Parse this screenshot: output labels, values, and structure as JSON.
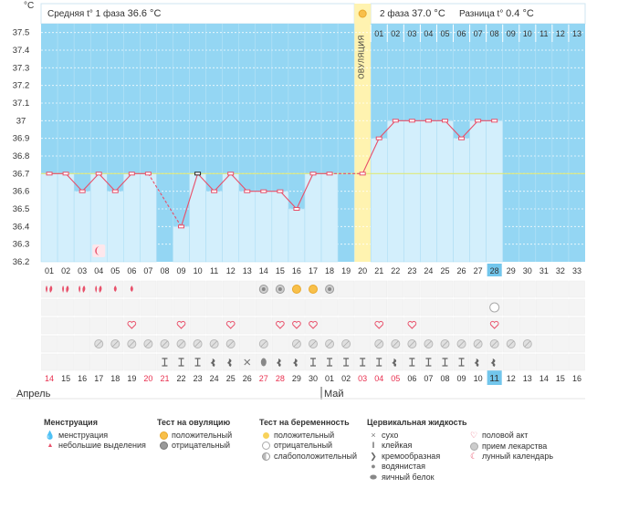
{
  "header": {
    "unit": "°C",
    "phase1_label": "Средняя t° 1 фаза",
    "phase1_value": "36.6 °C",
    "phase2_label": "2 фаза",
    "phase2_value": "37.0 °C",
    "diff_label": "Разница t°",
    "diff_value": "0.4 °C",
    "ovulation_label": "ОВУЛЯЦИЯ"
  },
  "chart_data": {
    "type": "line",
    "y_ticks": [
      "37.5",
      "37.4",
      "37.3",
      "37.2",
      "37.1",
      "37",
      "36.9",
      "36.8",
      "36.7",
      "36.6",
      "36.5",
      "36.4",
      "36.3",
      "36.2"
    ],
    "ylim": [
      36.2,
      37.55
    ],
    "cover_line": 36.7,
    "cycle_days": [
      "01",
      "02",
      "03",
      "04",
      "05",
      "06",
      "07",
      "08",
      "09",
      "10",
      "11",
      "12",
      "13",
      "14",
      "15",
      "16",
      "17",
      "18",
      "19",
      "20",
      "21",
      "22",
      "23",
      "24",
      "25",
      "26",
      "27",
      "28",
      "29",
      "30",
      "31",
      "32",
      "33"
    ],
    "phase2_top_days": [
      "01",
      "02",
      "03",
      "04",
      "05",
      "06",
      "07",
      "08",
      "09",
      "10",
      "11",
      "12",
      "13"
    ],
    "calendar_days": [
      "14",
      "15",
      "16",
      "17",
      "18",
      "19",
      "20",
      "21",
      "22",
      "23",
      "24",
      "25",
      "26",
      "27",
      "28",
      "29",
      "30",
      "01",
      "02",
      "03",
      "04",
      "05",
      "06",
      "07",
      "08",
      "09",
      "10",
      "11",
      "12",
      "13",
      "14",
      "15",
      "16"
    ],
    "calendar_red_indices": [
      0,
      6,
      7,
      13,
      14,
      19,
      20,
      21
    ],
    "month_april": "Апрель",
    "month_may": "Май",
    "current_day_index": 27,
    "ovulation_day_index": 19,
    "temps": [
      36.7,
      36.7,
      36.6,
      36.7,
      36.6,
      36.7,
      36.7,
      null,
      36.4,
      36.7,
      36.6,
      36.7,
      36.6,
      36.6,
      36.6,
      36.5,
      36.7,
      36.7,
      null,
      36.7,
      36.9,
      37.0,
      37.0,
      37.0,
      37.0,
      36.9,
      37.0,
      37.0,
      null,
      null,
      null,
      null,
      null
    ],
    "dashed_gap_from": 6,
    "dashed_gap_to": 8,
    "series": [
      {
        "values": [
          36.7,
          36.7,
          36.6,
          36.7,
          36.6,
          36.7,
          36.7,
          null,
          36.4,
          36.7,
          36.6,
          36.7,
          36.6,
          36.6,
          36.6,
          36.5,
          36.7,
          36.7,
          null,
          36.7,
          36.9,
          37.0,
          37.0,
          37.0,
          37.0,
          36.9,
          37.0,
          37.0,
          null,
          null,
          null,
          null,
          null
        ]
      }
    ],
    "colors": {
      "phase1_bg": "#94d6f3",
      "phase2_bg": "#94d6f3",
      "bar": "#d3effc",
      "ovulation": "#fff3b0",
      "line": "#e8506a",
      "cover": "#e0e97a"
    }
  },
  "rows": {
    "menstruation": [
      {
        "day": 0,
        "k": "heavy"
      },
      {
        "day": 1,
        "k": "heavy"
      },
      {
        "day": 2,
        "k": "heavy"
      },
      {
        "day": 3,
        "k": "heavy"
      },
      {
        "day": 4,
        "k": "light"
      },
      {
        "day": 5,
        "k": "light"
      }
    ],
    "tests": [
      {
        "day": 13,
        "k": "neg"
      },
      {
        "day": 14,
        "k": "neg"
      },
      {
        "day": 15,
        "k": "pos"
      },
      {
        "day": 16,
        "k": "pos"
      },
      {
        "day": 17,
        "k": "neg"
      }
    ],
    "pregnancy": [
      {
        "day": 27,
        "k": "neg"
      }
    ],
    "sex_days": [
      5,
      8,
      11,
      14,
      15,
      16,
      20,
      22,
      27
    ],
    "medicine_days": [
      3,
      4,
      5,
      6,
      7,
      8,
      9,
      10,
      11,
      13,
      15,
      16,
      17,
      18,
      20,
      21,
      22,
      23,
      24,
      25,
      26,
      27,
      28,
      29
    ],
    "fluid": [
      {
        "day": 7,
        "k": "sticky"
      },
      {
        "day": 8,
        "k": "sticky"
      },
      {
        "day": 9,
        "k": "sticky"
      },
      {
        "day": 10,
        "k": "creamy"
      },
      {
        "day": 11,
        "k": "creamy"
      },
      {
        "day": 12,
        "k": "dry"
      },
      {
        "day": 13,
        "k": "eggwhite"
      },
      {
        "day": 14,
        "k": "creamy"
      },
      {
        "day": 15,
        "k": "creamy"
      },
      {
        "day": 16,
        "k": "sticky"
      },
      {
        "day": 17,
        "k": "sticky"
      },
      {
        "day": 18,
        "k": "sticky"
      },
      {
        "day": 19,
        "k": "sticky"
      },
      {
        "day": 20,
        "k": "sticky"
      },
      {
        "day": 21,
        "k": "creamy"
      },
      {
        "day": 22,
        "k": "sticky"
      },
      {
        "day": 23,
        "k": "sticky"
      },
      {
        "day": 24,
        "k": "sticky"
      },
      {
        "day": 25,
        "k": "sticky"
      },
      {
        "day": 26,
        "k": "creamy"
      },
      {
        "day": 27,
        "k": "creamy"
      }
    ],
    "moon_day": 3
  },
  "legend": {
    "menstruation": {
      "title": "Менструация",
      "items": [
        "менструация",
        "небольшие выделения"
      ]
    },
    "ovulation_test": {
      "title": "Тест на овуляцию",
      "items": [
        "положительный",
        "отрицательный"
      ]
    },
    "pregnancy_test": {
      "title": "Тест на беременность",
      "items": [
        "положительный",
        "отрицательный",
        "слабоположительный"
      ]
    },
    "fluid": {
      "title": "Цервикальная жидкость",
      "items": [
        "сухо",
        "клейкая",
        "кремообразная",
        "водянистая",
        "яичный белок"
      ]
    },
    "other": {
      "items": [
        "половой акт",
        "прием лекарства",
        "лунный календарь"
      ]
    }
  }
}
